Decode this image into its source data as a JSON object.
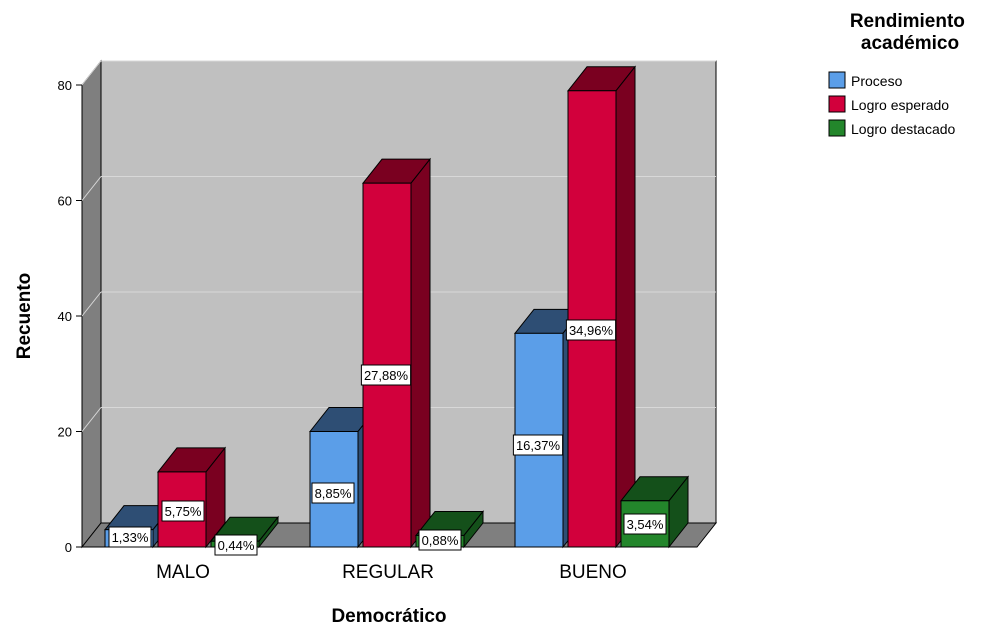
{
  "chart_data": {
    "type": "bar",
    "xlabel": "Democrático",
    "ylabel": "Recuento",
    "ylim": [
      0,
      80
    ],
    "yticks": [
      "0",
      "20",
      "40",
      "60",
      "80"
    ],
    "categories": [
      "MALO",
      "REGULAR",
      "BUENO"
    ],
    "legend_title": "Rendimiento académico",
    "legend_position": "top-right",
    "grid": true,
    "series": [
      {
        "name": "Proceso",
        "color": "#5b9ee8",
        "side_color": "#2e4e74",
        "values": [
          3,
          20,
          37
        ],
        "labels": [
          "1,33%",
          "8,85%",
          "16,37%"
        ]
      },
      {
        "name": "Logro esperado",
        "color": "#d2003c",
        "side_color": "#7a0020",
        "values": [
          13,
          63,
          79
        ],
        "labels": [
          "5,75%",
          "27,88%",
          "34,96%"
        ]
      },
      {
        "name": "Logro destacado",
        "color": "#23862b",
        "side_color": "#14501a",
        "values": [
          1,
          2,
          8
        ],
        "labels": [
          "0,44%",
          "0,88%",
          "3,54%"
        ]
      }
    ]
  }
}
